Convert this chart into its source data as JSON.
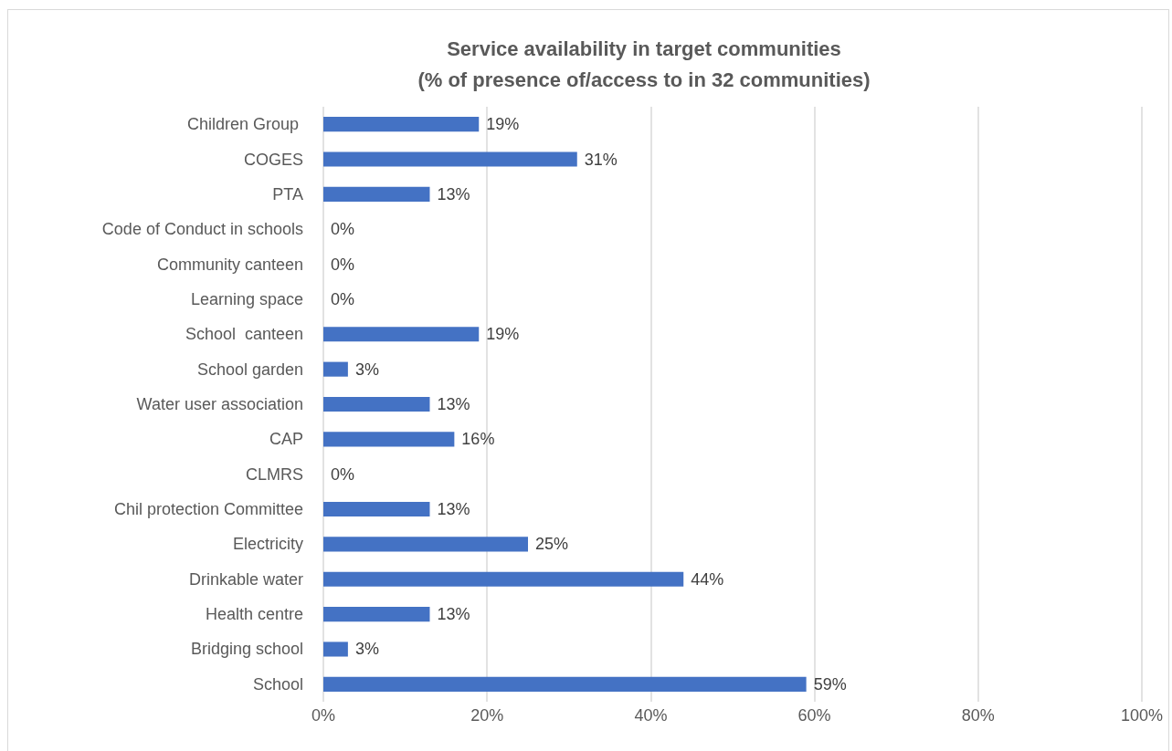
{
  "chart_data": {
    "type": "bar",
    "orientation": "horizontal",
    "title": "Service availability in target communities",
    "subtitle": "(% of presence of/access to in 32 communities)",
    "categories": [
      "Children Group ",
      "COGES",
      "PTA",
      "Code of Conduct in schools",
      "Community canteen",
      "Learning space",
      "School  canteen",
      "School garden",
      "Water user association",
      "CAP",
      "CLMRS",
      "Chil protection Committee",
      "Electricity",
      "Drinkable water",
      "Health centre",
      "Bridging school",
      "School"
    ],
    "values": [
      19,
      31,
      13,
      0,
      0,
      0,
      19,
      3,
      13,
      16,
      0,
      13,
      25,
      44,
      13,
      3,
      59
    ],
    "value_labels": [
      "19%",
      "31%",
      "13%",
      "0%",
      "0%",
      "0%",
      "19%",
      "3%",
      "13%",
      "16%",
      "0%",
      "13%",
      "25%",
      "44%",
      "13%",
      "3%",
      "59%"
    ],
    "color": "#4472c4",
    "xlim": [
      0,
      100
    ],
    "xticks": [
      {
        "value": 0,
        "label": "0%"
      },
      {
        "value": 20,
        "label": "20%"
      },
      {
        "value": 40,
        "label": "40%"
      },
      {
        "value": 60,
        "label": "60%"
      },
      {
        "value": 80,
        "label": "80%"
      },
      {
        "value": 100,
        "label": "100%"
      }
    ],
    "grid": "x"
  }
}
